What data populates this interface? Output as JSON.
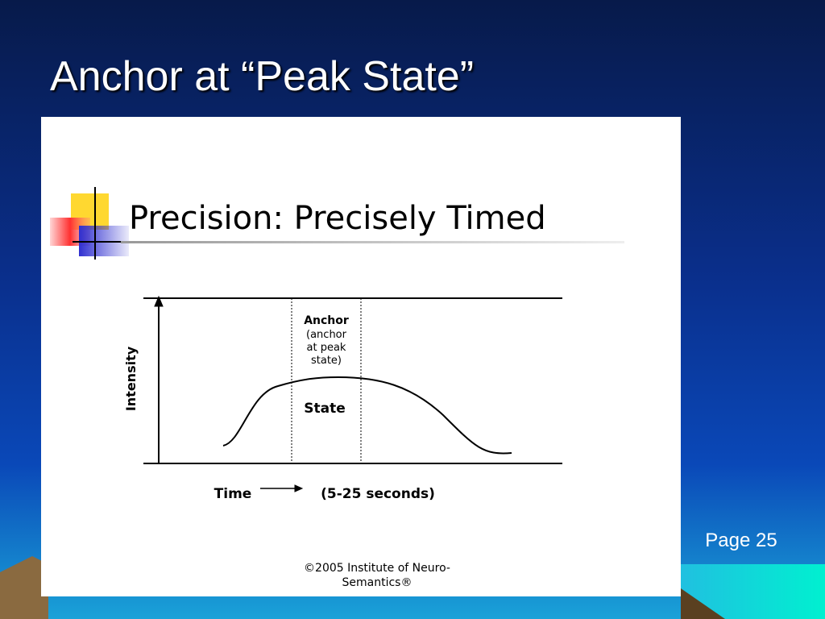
{
  "slide": {
    "title": "Anchor at “Peak State”",
    "page": "Page 25",
    "figure": {
      "heading": "Precision: Precisely Timed",
      "y_axis": "Intensity",
      "anchor_title": "Anchor",
      "anchor_note": [
        "(anchor",
        "at peak",
        "state)"
      ],
      "curve_label": "State",
      "x_axis": "Time",
      "duration": "(5-25 seconds)",
      "copyright": [
        "©2005 Institute of Neuro-",
        "Semantics®"
      ]
    }
  }
}
